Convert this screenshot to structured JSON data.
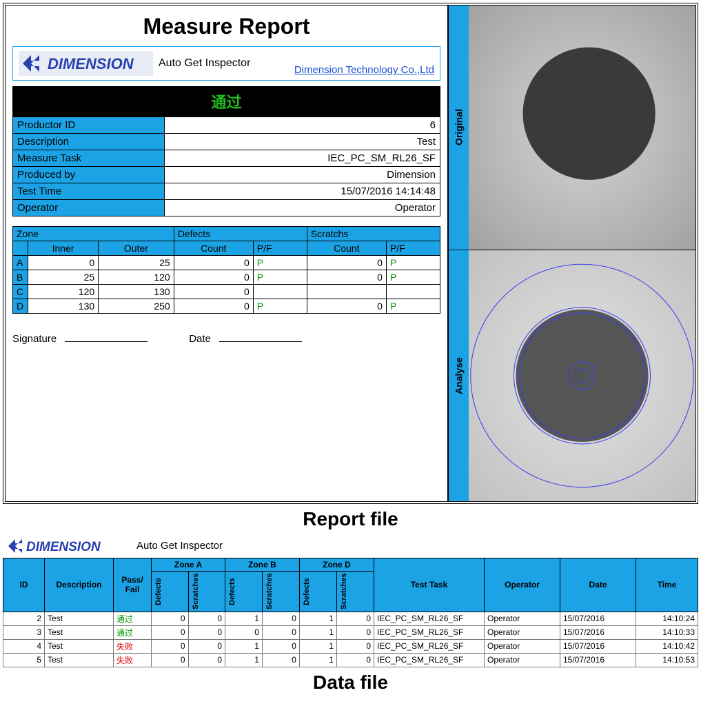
{
  "report": {
    "title": "Measure Report",
    "logo_text": "DIMENSION",
    "subtitle": "Auto Get Inspector",
    "company_link": "Dimension Technology Co.,Ltd",
    "pass_text": "通过",
    "info": [
      {
        "k": "Productor ID",
        "v": "6"
      },
      {
        "k": "Description",
        "v": "Test"
      },
      {
        "k": "Measure Task",
        "v": "IEC_PC_SM_RL26_SF"
      },
      {
        "k": "Produced by",
        "v": "Dimension"
      },
      {
        "k": "Test Time",
        "v": "15/07/2016 14:14:48"
      },
      {
        "k": "Operator",
        "v": "Operator"
      }
    ],
    "zone_headers": {
      "zone": "Zone",
      "defects": "Defects",
      "scratches": "Scratchs",
      "inner": "Inner",
      "outer": "Outer",
      "count": "Count",
      "pf": "P/F"
    },
    "zones": [
      {
        "z": "A",
        "inner": "0",
        "outer": "25",
        "dcount": "0",
        "dpf": "P",
        "scount": "0",
        "spf": "P"
      },
      {
        "z": "B",
        "inner": "25",
        "outer": "120",
        "dcount": "0",
        "dpf": "P",
        "scount": "0",
        "spf": "P"
      },
      {
        "z": "C",
        "inner": "120",
        "outer": "130",
        "dcount": "0",
        "dpf": "",
        "scount": "",
        "spf": ""
      },
      {
        "z": "D",
        "inner": "130",
        "outer": "250",
        "dcount": "0",
        "dpf": "P",
        "scount": "0",
        "spf": "P"
      }
    ],
    "signature_label": "Signature",
    "date_label": "Date",
    "original_label": "Original",
    "analyse_label": "Analyse",
    "colors": {
      "accent": "#1ca3e6",
      "pass": "#1fbf1f",
      "circle": "#3a3a3a",
      "bg1": "#bdbdbd",
      "bg2": "#d9d9d9",
      "ring": "#2a2af0"
    }
  },
  "caption_report": "Report file",
  "datafile": {
    "logo_text": "DIMENSION",
    "subtitle": "Auto Get Inspector",
    "headers": {
      "id": "ID",
      "desc": "Description",
      "pf": "Pass/\nFail",
      "za": "Zone A",
      "zb": "Zone B",
      "zd": "Zone D",
      "def": "Defects",
      "scr": "Scratches",
      "task": "Test Task",
      "op": "Operator",
      "date": "Date",
      "time": "Time"
    },
    "rows": [
      {
        "id": "2",
        "desc": "Test",
        "pf": "通过",
        "pfc": "passg",
        "ad": "0",
        "as": "0",
        "bd": "1",
        "bs": "0",
        "dd": "1",
        "ds": "0",
        "task": "IEC_PC_SM_RL26_SF",
        "op": "Operator",
        "date": "15/07/2016",
        "time": "14:10:24"
      },
      {
        "id": "3",
        "desc": "Test",
        "pf": "通过",
        "pfc": "passg",
        "ad": "0",
        "as": "0",
        "bd": "0",
        "bs": "0",
        "dd": "1",
        "ds": "0",
        "task": "IEC_PC_SM_RL26_SF",
        "op": "Operator",
        "date": "15/07/2016",
        "time": "14:10:33"
      },
      {
        "id": "4",
        "desc": "Test",
        "pf": "失败",
        "pfc": "failr",
        "ad": "0",
        "as": "0",
        "bd": "1",
        "bs": "0",
        "dd": "1",
        "ds": "0",
        "task": "IEC_PC_SM_RL26_SF",
        "op": "Operator",
        "date": "15/07/2016",
        "time": "14:10:42"
      },
      {
        "id": "5",
        "desc": "Test",
        "pf": "失败",
        "pfc": "failr",
        "ad": "0",
        "as": "0",
        "bd": "1",
        "bs": "0",
        "dd": "1",
        "ds": "0",
        "task": "IEC_PC_SM_RL26_SF",
        "op": "Operator",
        "date": "15/07/2016",
        "time": "14:10:53"
      }
    ]
  },
  "caption_data": "Data file"
}
